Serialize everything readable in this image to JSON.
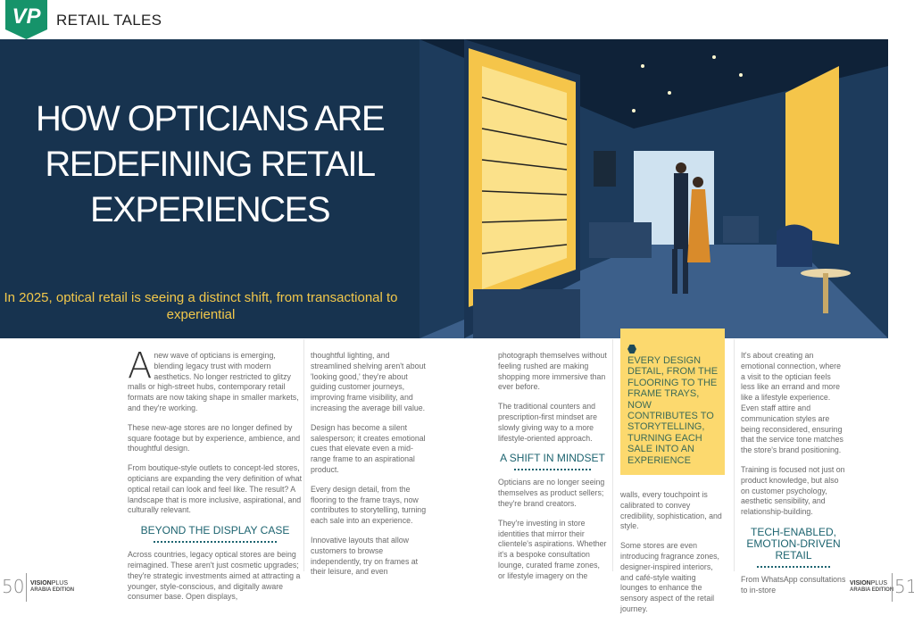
{
  "header": {
    "logo": "VP",
    "section": "RETAIL TALES"
  },
  "hero": {
    "title": "HOW OPTICIANS ARE REDEFINING RETAIL EXPERIENCES",
    "subtitle": "In 2025, optical retail is seeing a distinct shift, from transactional to experiential",
    "colors": {
      "panel": "#17334f",
      "subtitle": "#f2c84b"
    }
  },
  "article": {
    "col1": {
      "drop_cap": "A",
      "p1": "new wave of opticians is emerging, blending legacy trust with modern aesthetics. No longer restricted to glitzy malls or high-street hubs, contemporary retail formats are now taking shape in smaller markets, and they're working.",
      "p2": "These new-age stores are no longer defined by square footage but by experience, ambience, and thoughtful design.",
      "p3": "From boutique-style outlets to concept-led stores, opticians are expanding the very definition of what optical retail can look and feel like. The result? A landscape that is more inclusive, aspirational, and culturally relevant.",
      "heading": "BEYOND THE DISPLAY CASE",
      "p4": "Across countries, legacy optical stores are being reimagined. These aren't just cosmetic upgrades; they're strategic investments aimed at attracting a younger, style-conscious, and digitally aware consumer base. Open displays,"
    },
    "col2": {
      "p1": "thoughtful lighting, and streamlined shelving aren't about 'looking good,' they're about guiding customer journeys, improving frame visibility, and increasing the average bill value.",
      "p2": "Design has become a silent salesperson; it creates emotional cues that elevate even a mid-range frame to an aspirational product.",
      "p3": "Every design detail, from the flooring to the frame trays, now contributes to storytelling, turning each sale into an experience.",
      "p4": "Innovative layouts that allow customers to browse independently, try on frames at their leisure, and even"
    },
    "col3": {
      "p1": "photograph themselves without feeling rushed are making shopping more immersive than ever before.",
      "p2": "The traditional counters and prescription-first mindset are slowly giving way to a more lifestyle-oriented approach.",
      "heading": "A SHIFT IN MINDSET",
      "p3": "Opticians are no longer seeing themselves as product sellers; they're brand creators.",
      "p4": "They're investing in store identities that mirror their clientele's aspirations. Whether it's a bespoke consultation lounge, curated frame zones, or lifestyle imagery on the"
    },
    "pull_quote": {
      "text": "EVERY DESIGN DETAIL, FROM THE FLOORING TO THE FRAME TRAYS, NOW CONTRIBUTES TO STORYTELLING, TURNING EACH SALE INTO AN EXPERIENCE",
      "color": "#fcd96e"
    },
    "col4": {
      "p1": "walls, every touchpoint is calibrated to convey credibility, sophistication, and style.",
      "p2": "Some stores are even introducing fragrance zones, designer-inspired interiors, and café-style waiting lounges to enhance the sensory aspect of the retail journey."
    },
    "col5": {
      "p1": "It's about creating an emotional connection, where a visit to the optician feels less like an errand and more like a lifestyle experience. Even staff attire and communication styles are being reconsidered, ensuring that the service tone matches the store's brand positioning.",
      "p2": "Training is focused not just on product knowledge, but also on customer psychology, aesthetic sensibility, and relationship-building.",
      "heading": "TECH-ENABLED, EMOTION-DRIVEN RETAIL",
      "p3": "From WhatsApp consultations to in-store"
    },
    "heading_color": "#1d6470"
  },
  "footer": {
    "left_page": "50",
    "right_page": "51",
    "brand_bold": "VISION",
    "brand_light": "PLUS",
    "edition": "ARABIA EDITION"
  }
}
